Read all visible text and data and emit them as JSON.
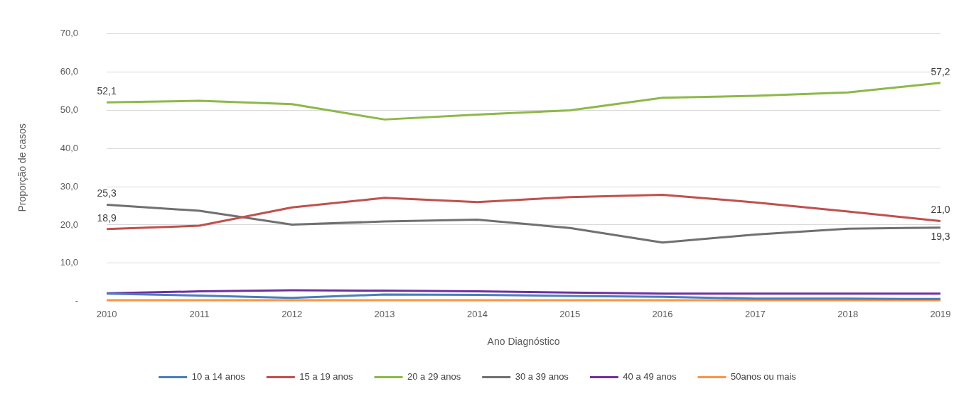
{
  "chart_data": {
    "type": "line",
    "xlabel": "Ano Diagnóstico",
    "ylabel": "Proporção de casos",
    "categories": [
      "2010",
      "2011",
      "2012",
      "2013",
      "2014",
      "2015",
      "2016",
      "2017",
      "2018",
      "2019"
    ],
    "ylim": [
      0,
      70
    ],
    "yticks": [
      {
        "value": 0,
        "label": "-"
      },
      {
        "value": 10,
        "label": "10,0"
      },
      {
        "value": 20,
        "label": "20,0"
      },
      {
        "value": 30,
        "label": "30,0"
      },
      {
        "value": 40,
        "label": "40,0"
      },
      {
        "value": 50,
        "label": "50,0"
      },
      {
        "value": 60,
        "label": "60,0"
      },
      {
        "value": 70,
        "label": "70,0"
      }
    ],
    "grid": "y",
    "legend": "bottom",
    "marker": "none",
    "line_style": "solid",
    "series": [
      {
        "name": "10 a 14 anos",
        "color": "#4a7ebb",
        "values": [
          2.0,
          1.5,
          0.9,
          1.8,
          1.7,
          1.4,
          1.2,
          0.7,
          0.7,
          0.6
        ]
      },
      {
        "name": "15 a 19 anos",
        "color": "#c0504d",
        "values": [
          18.9,
          19.8,
          24.6,
          27.1,
          26.0,
          27.3,
          27.9,
          25.9,
          23.5,
          21.0
        ],
        "value_labels": [
          "18,9",
          null,
          null,
          null,
          null,
          null,
          null,
          null,
          null,
          "21,0"
        ]
      },
      {
        "name": "20 a 29 anos",
        "color": "#8db848",
        "values": [
          52.1,
          52.5,
          51.6,
          47.6,
          48.9,
          50.0,
          53.3,
          53.8,
          54.7,
          57.2
        ],
        "value_labels": [
          "52,1",
          null,
          null,
          null,
          null,
          null,
          null,
          null,
          null,
          "57,2"
        ]
      },
      {
        "name": "30 a 39 anos",
        "color": "#707070",
        "values": [
          25.3,
          23.7,
          20.1,
          20.9,
          21.4,
          19.2,
          15.4,
          17.5,
          19.0,
          19.3
        ],
        "value_labels": [
          "25,3",
          null,
          null,
          null,
          null,
          null,
          null,
          null,
          null,
          "19,3"
        ]
      },
      {
        "name": "40 a 49 anos",
        "color": "#7030a0",
        "values": [
          2.1,
          2.6,
          2.9,
          2.8,
          2.6,
          2.3,
          2.0,
          2.0,
          2.0,
          2.0
        ]
      },
      {
        "name": "50anos ou mais",
        "color": "#f79646",
        "values": [
          0.3,
          0.3,
          0.3,
          0.3,
          0.3,
          0.3,
          0.3,
          0.3,
          0.3,
          0.3
        ]
      }
    ]
  }
}
